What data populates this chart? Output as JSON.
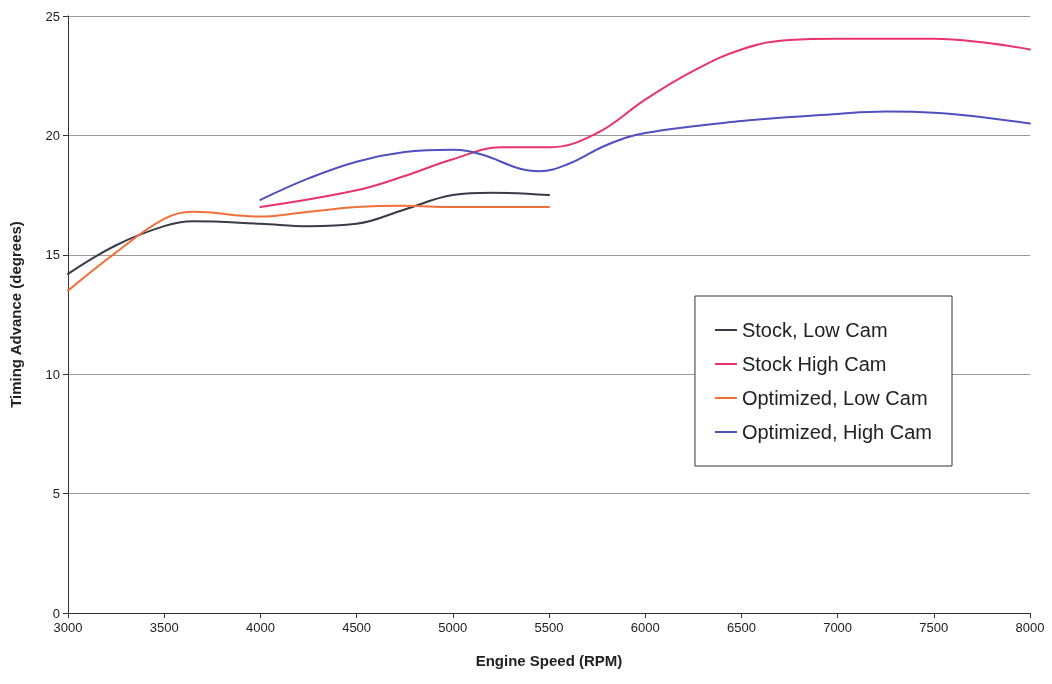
{
  "chart_data": {
    "type": "line",
    "xlabel": "Engine Speed (RPM)",
    "ylabel": "Timing Advance (degrees)",
    "xlim": [
      3000,
      8000
    ],
    "xticks": [
      3000,
      3500,
      4000,
      4500,
      5000,
      5500,
      6000,
      6500,
      7000,
      7500,
      8000
    ],
    "ylim": [
      0,
      25
    ],
    "yticks": [
      0,
      5,
      10,
      15,
      20,
      25
    ],
    "grid": "y",
    "legend": "right",
    "marker": "none",
    "line_style": "solid",
    "series": [
      {
        "name": "Stock, Low Cam",
        "color": "#3a3a48",
        "x": [
          3000,
          3250,
          3500,
          3650,
          4000,
          4250,
          4500,
          4750,
          5000,
          5200,
          5500
        ],
        "values": [
          14.2,
          15.4,
          16.2,
          16.4,
          16.3,
          16.2,
          16.3,
          16.9,
          17.5,
          17.6,
          17.5
        ]
      },
      {
        "name": "Stock High Cam",
        "color": "#e8336d",
        "x": [
          4000,
          4500,
          4750,
          5000,
          5250,
          5500,
          5750,
          6000,
          6250,
          6500,
          6750,
          7000,
          7500,
          7750,
          8000
        ],
        "values": [
          17.0,
          17.7,
          18.3,
          19.0,
          19.5,
          19.5,
          20.1,
          21.5,
          22.7,
          23.6,
          24.0,
          24.05,
          24.05,
          23.9,
          23.6
        ]
      },
      {
        "name": "Optimized, Low Cam",
        "color": "#f0703a",
        "x": [
          3000,
          3250,
          3500,
          3650,
          4000,
          4250,
          4500,
          4750,
          5000,
          5500
        ],
        "values": [
          13.5,
          15.1,
          16.5,
          16.8,
          16.6,
          16.8,
          17.0,
          17.05,
          17.0,
          17.0
        ]
      },
      {
        "name": "Optimized, High Cam",
        "color": "#5050c0",
        "x": [
          4000,
          4250,
          4500,
          4750,
          5000,
          5150,
          5350,
          5450,
          5600,
          5800,
          6000,
          6500,
          7000,
          7250,
          7500,
          8000
        ],
        "values": [
          17.3,
          18.2,
          18.9,
          19.3,
          19.4,
          19.2,
          18.6,
          18.5,
          18.8,
          19.6,
          20.1,
          20.6,
          20.9,
          21.0,
          20.95,
          20.5
        ]
      }
    ]
  }
}
